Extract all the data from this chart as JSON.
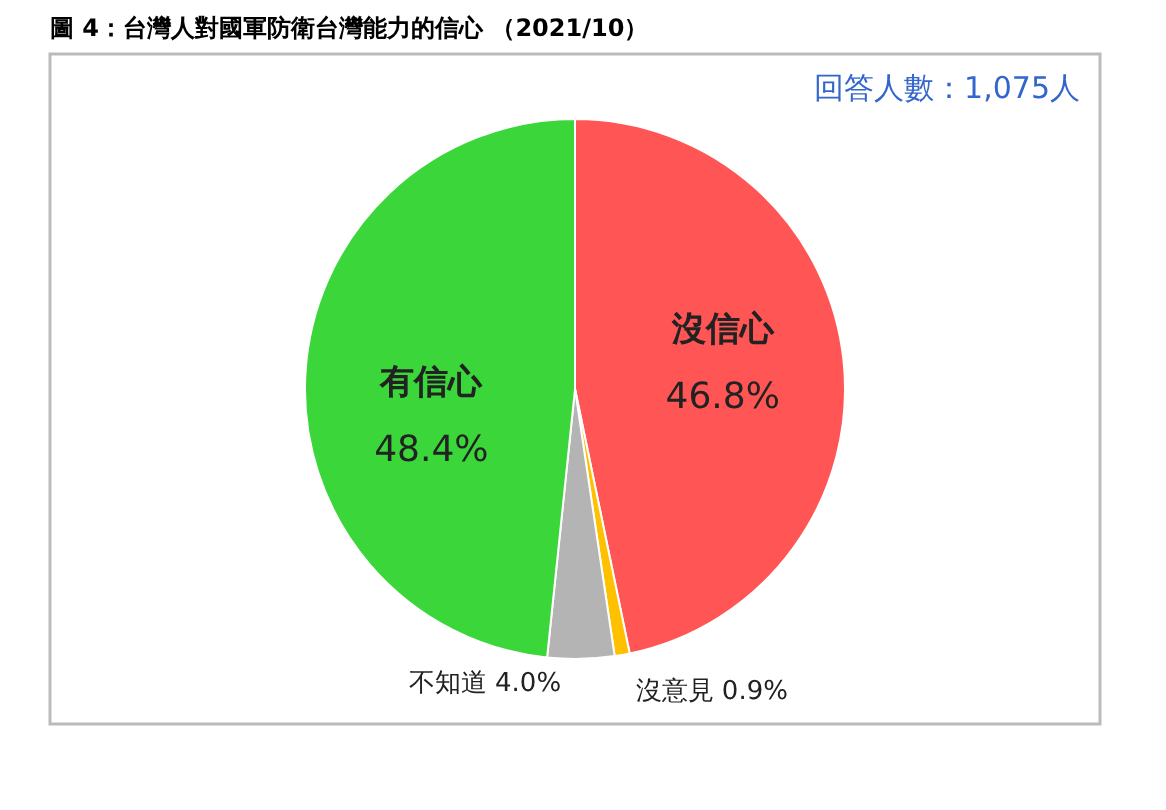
{
  "chart_data": {
    "type": "pie",
    "title": "圖 4：台灣人對國軍防衛台灣能力的信心 （2021/10）",
    "categories": [
      "沒信心",
      "沒意見",
      "不知道",
      "有信心"
    ],
    "values": [
      46.8,
      0.9,
      4.0,
      48.4
    ],
    "value_labels": [
      "46.8%",
      "0.9%",
      "4.0%",
      "48.4%"
    ],
    "colors": [
      "#ff5555",
      "#ffc000",
      "#b4b4b4",
      "#3ad63a"
    ],
    "annotations": [
      "回答人數：1,075人"
    ],
    "legend": false
  }
}
